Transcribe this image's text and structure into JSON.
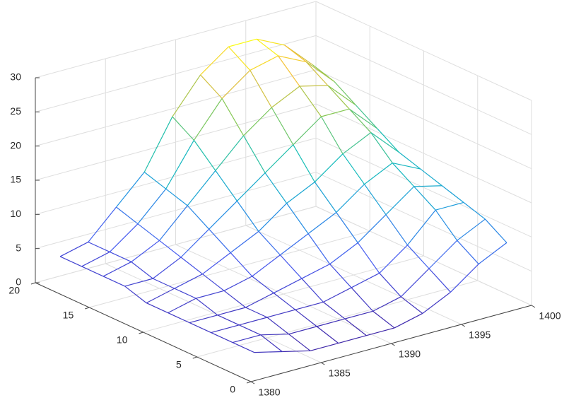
{
  "chart_data": {
    "type": "mesh",
    "colormap": "parula",
    "x": [
      1381,
      1383,
      1385,
      1387,
      1389,
      1391,
      1393,
      1395,
      1397,
      1399
    ],
    "y": [
      1,
      3,
      5,
      7,
      9,
      11,
      13,
      15,
      17,
      19
    ],
    "z": [
      [
        3,
        2,
        1,
        1,
        1,
        1,
        2,
        4,
        7,
        9
      ],
      [
        3,
        3,
        2,
        2,
        2,
        2,
        3,
        6,
        9,
        11
      ],
      [
        3,
        3,
        3,
        3,
        3,
        4,
        5,
        8,
        12,
        12
      ],
      [
        3,
        3,
        3,
        4,
        5,
        6,
        8,
        11,
        14,
        13
      ],
      [
        3,
        4,
        4,
        5,
        7,
        9,
        11,
        14,
        16,
        14
      ],
      [
        3,
        4,
        5,
        7,
        9,
        12,
        14,
        17,
        19,
        15
      ],
      [
        4,
        4,
        6,
        9,
        12,
        15,
        18,
        21,
        21,
        17
      ],
      [
        4,
        5,
        7,
        11,
        15,
        19,
        22,
        24,
        23,
        19
      ],
      [
        4,
        5,
        8,
        12,
        18,
        23,
        26,
        27,
        25,
        21
      ],
      [
        4,
        5,
        9,
        13,
        20,
        25,
        28,
        28,
        26,
        22
      ]
    ],
    "xlim": [
      1380,
      1400
    ],
    "xticks": [
      1380,
      1385,
      1390,
      1395,
      1400
    ],
    "ylim": [
      0,
      20
    ],
    "yticks": [
      0,
      5,
      10,
      15,
      20
    ],
    "zlim": [
      0,
      30
    ],
    "zticks": [
      0,
      5,
      10,
      15,
      20,
      25,
      30
    ],
    "grid": true
  }
}
